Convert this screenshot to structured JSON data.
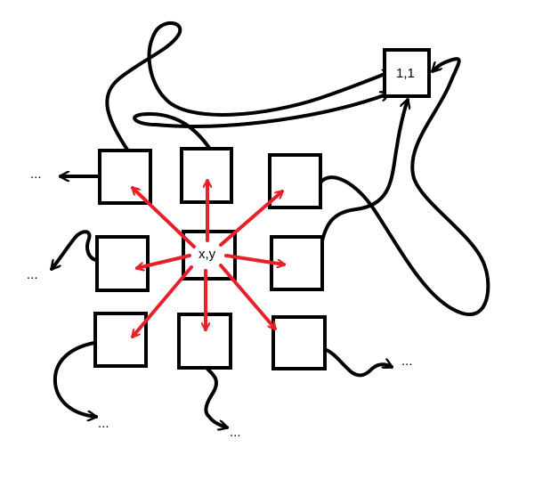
{
  "nodes": {
    "center_label": "x,y",
    "target_label": "1,1"
  },
  "continuations": {
    "left_top": "...",
    "left_middle": "...",
    "bottom_left": "...",
    "bottom_middle": "...",
    "bottom_right": "..."
  },
  "colors": {
    "neighbor_arrows": "#e8202a",
    "outline": "#000000"
  }
}
